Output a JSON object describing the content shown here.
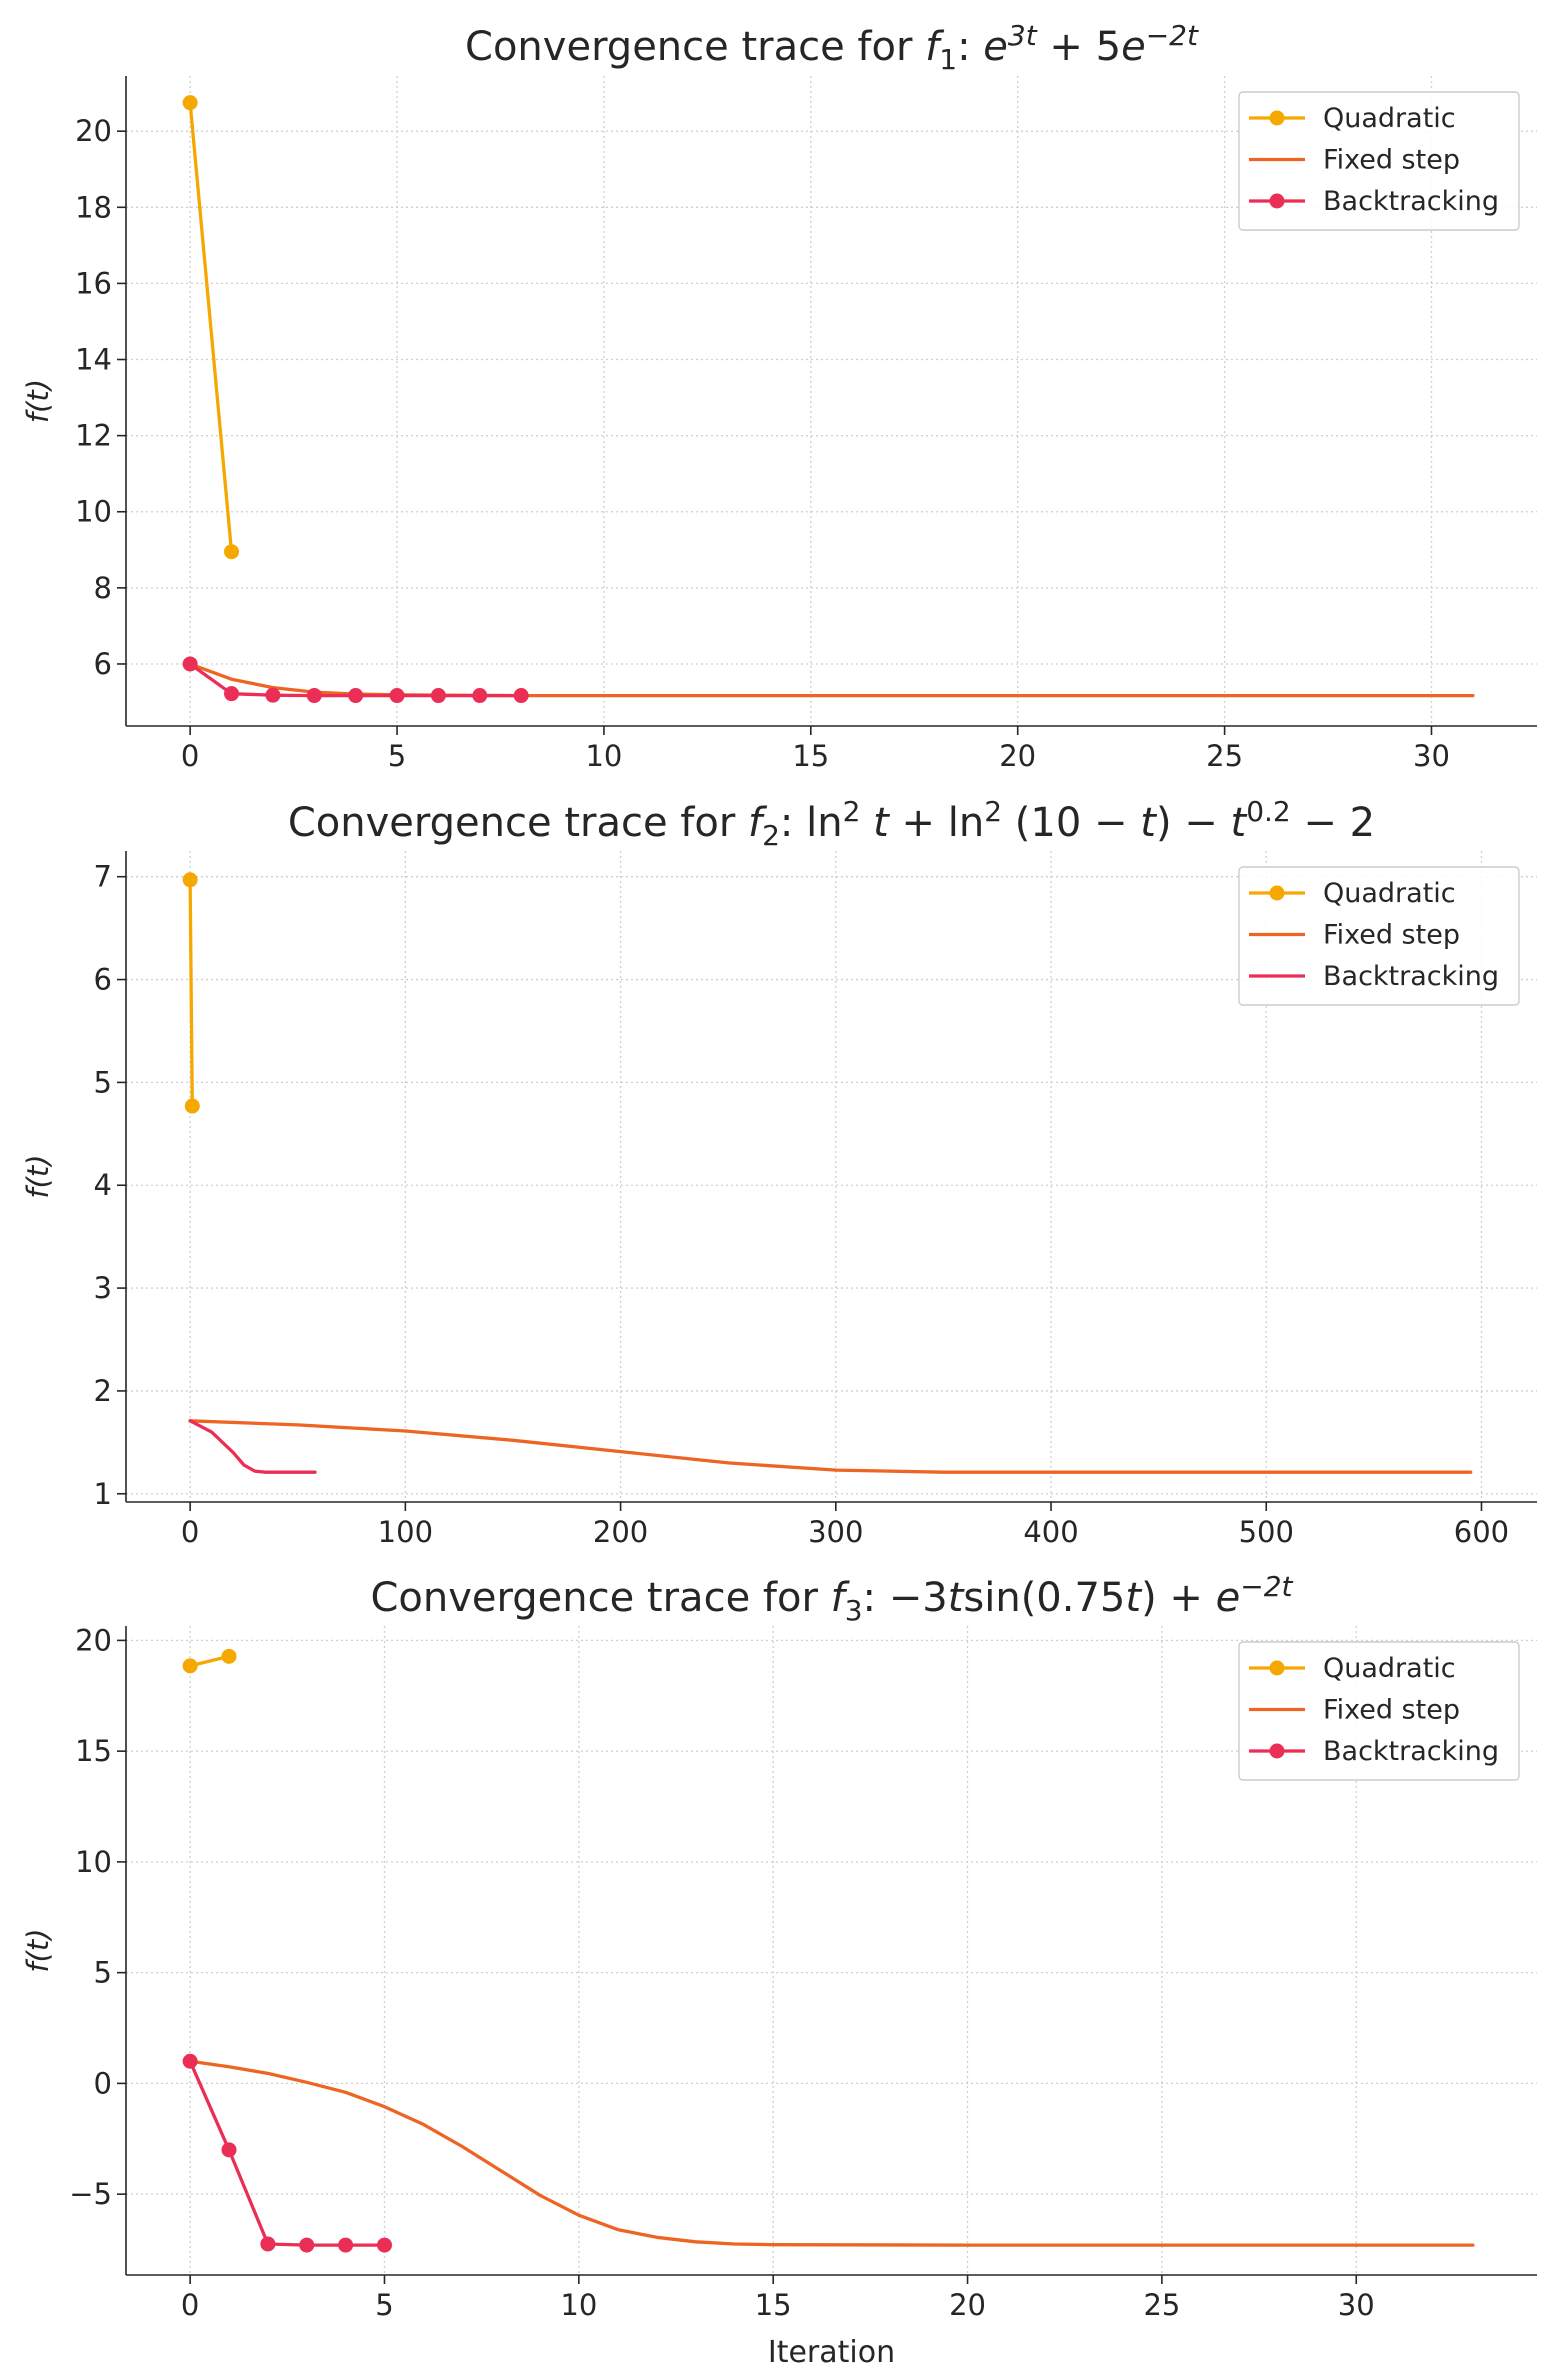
{
  "chart_data": [
    {
      "type": "line",
      "title": "Convergence trace for f₁: e^{3t} + 5e^{−2t}",
      "title_parts": {
        "prefix": "Convergence trace for ",
        "fn": "f",
        "fn_sub": "1",
        "colon": ": ",
        "expr": [
          {
            "t": "e",
            "i": true
          },
          {
            "t": "3t",
            "i": true,
            "sup": true
          },
          {
            "t": " + 5",
            "i": false
          },
          {
            "t": "e",
            "i": true
          },
          {
            "t": "−2t",
            "i": true,
            "sup": true
          }
        ]
      },
      "xlabel": "",
      "ylabel": "f(t)",
      "xlim": [
        -1.55,
        32.55
      ],
      "ylim": [
        4.37,
        21.45
      ],
      "xticks": [
        0,
        5,
        10,
        15,
        20,
        25,
        30
      ],
      "xtick_labels": [
        "0",
        "5",
        "10",
        "15",
        "20",
        "25",
        "30"
      ],
      "yticks": [
        6,
        8,
        10,
        12,
        14,
        16,
        18,
        20
      ],
      "ytick_labels": [
        "6",
        "8",
        "10",
        "12",
        "14",
        "16",
        "18",
        "20"
      ],
      "grid": true,
      "legend_position": "top-right",
      "series": [
        {
          "name": "Quadratic",
          "color": "#f5a800",
          "markers": true,
          "x": [
            0,
            1
          ],
          "y": [
            20.75,
            8.95
          ]
        },
        {
          "name": "Fixed step",
          "color": "#ee6423",
          "markers": false,
          "x": [
            0,
            1,
            2,
            3,
            4,
            5,
            6,
            8,
            10,
            15,
            20,
            25,
            31
          ],
          "y": [
            6.0,
            5.6,
            5.38,
            5.26,
            5.21,
            5.19,
            5.18,
            5.17,
            5.17,
            5.17,
            5.17,
            5.17,
            5.17
          ]
        },
        {
          "name": "Backtracking",
          "color": "#ea2e56",
          "markers": true,
          "x": [
            0,
            1,
            2,
            3,
            4,
            5,
            6,
            7,
            8
          ],
          "y": [
            6.0,
            5.22,
            5.18,
            5.17,
            5.17,
            5.17,
            5.17,
            5.17,
            5.17
          ]
        }
      ]
    },
    {
      "type": "line",
      "title": "Convergence trace for f₂: ln² t + ln² (10 − t) − t^{0.2} − 2",
      "title_parts": {
        "prefix": "Convergence trace for ",
        "fn": "f",
        "fn_sub": "2",
        "colon": ": ",
        "expr": [
          {
            "t": "ln",
            "i": false
          },
          {
            "t": "2",
            "i": false,
            "sup": true
          },
          {
            "t": " ",
            "i": false
          },
          {
            "t": "t",
            "i": true
          },
          {
            "t": " + ln",
            "i": false
          },
          {
            "t": "2",
            "i": false,
            "sup": true
          },
          {
            "t": " (10 − ",
            "i": false
          },
          {
            "t": "t",
            "i": true
          },
          {
            "t": ") − ",
            "i": false
          },
          {
            "t": "t",
            "i": true
          },
          {
            "t": "0.2",
            "i": false,
            "sup": true
          },
          {
            "t": " − 2",
            "i": false
          }
        ]
      },
      "xlabel": "",
      "ylabel": "f(t)",
      "xlim": [
        -29.8,
        625.8
      ],
      "ylim": [
        0.92,
        7.25
      ],
      "xticks": [
        0,
        100,
        200,
        300,
        400,
        500,
        600
      ],
      "xtick_labels": [
        "0",
        "100",
        "200",
        "300",
        "400",
        "500",
        "600"
      ],
      "yticks": [
        1,
        2,
        3,
        4,
        5,
        6,
        7
      ],
      "ytick_labels": [
        "1",
        "2",
        "3",
        "4",
        "5",
        "6",
        "7"
      ],
      "grid": true,
      "legend_position": "top-right",
      "series": [
        {
          "name": "Quadratic",
          "color": "#f5a800",
          "markers": true,
          "x": [
            0,
            1
          ],
          "y": [
            6.97,
            4.77
          ]
        },
        {
          "name": "Fixed step",
          "color": "#ee6423",
          "markers": false,
          "x": [
            0,
            50,
            100,
            150,
            200,
            250,
            300,
            350,
            400,
            500,
            595
          ],
          "y": [
            1.71,
            1.67,
            1.61,
            1.52,
            1.41,
            1.3,
            1.23,
            1.21,
            1.21,
            1.21,
            1.21
          ]
        },
        {
          "name": "Backtracking",
          "color": "#ea2e56",
          "markers": false,
          "x": [
            0,
            10,
            20,
            25,
            30,
            35,
            40,
            50,
            58
          ],
          "y": [
            1.71,
            1.6,
            1.4,
            1.28,
            1.22,
            1.21,
            1.21,
            1.21,
            1.21
          ]
        }
      ]
    },
    {
      "type": "line",
      "title": "Convergence trace for f₃: −3t sin(0.75t) + e^{−2t}",
      "title_parts": {
        "prefix": "Convergence trace for ",
        "fn": "f",
        "fn_sub": "3",
        "colon": ": ",
        "expr": [
          {
            "t": "−3",
            "i": false
          },
          {
            "t": "t",
            "i": true
          },
          {
            "t": "sin(0.75",
            "i": false
          },
          {
            "t": "t",
            "i": true
          },
          {
            "t": ") + ",
            "i": false
          },
          {
            "t": "e",
            "i": true
          },
          {
            "t": "−2t",
            "i": true,
            "sup": true
          }
        ]
      },
      "xlabel": "Iteration",
      "ylabel": "f(t)",
      "xlim": [
        -1.65,
        34.65
      ],
      "ylim": [
        -8.65,
        20.65
      ],
      "xticks": [
        0,
        5,
        10,
        15,
        20,
        25,
        30
      ],
      "xtick_labels": [
        "0",
        "5",
        "10",
        "15",
        "20",
        "25",
        "30"
      ],
      "yticks": [
        -5,
        0,
        5,
        10,
        15,
        20
      ],
      "ytick_labels": [
        "−5",
        "0",
        "5",
        "10",
        "15",
        "20"
      ],
      "grid": true,
      "legend_position": "top-right",
      "series": [
        {
          "name": "Quadratic",
          "color": "#f5a800",
          "markers": true,
          "x": [
            0,
            1
          ],
          "y": [
            18.85,
            19.28
          ]
        },
        {
          "name": "Fixed step",
          "color": "#ee6423",
          "markers": false,
          "x": [
            0,
            1,
            2,
            3,
            4,
            5,
            6,
            7,
            8,
            9,
            10,
            11,
            12,
            13,
            14,
            15,
            20,
            25,
            30,
            33
          ],
          "y": [
            1.0,
            0.75,
            0.45,
            0.05,
            -0.4,
            -1.05,
            -1.85,
            -2.85,
            -3.95,
            -5.05,
            -5.95,
            -6.6,
            -6.95,
            -7.15,
            -7.25,
            -7.28,
            -7.3,
            -7.3,
            -7.3,
            -7.3
          ]
        },
        {
          "name": "Backtracking",
          "color": "#ea2e56",
          "markers": true,
          "x": [
            0,
            1,
            2,
            3,
            4,
            5
          ],
          "y": [
            1.0,
            -3.0,
            -7.25,
            -7.3,
            -7.3,
            -7.3
          ]
        }
      ]
    }
  ]
}
